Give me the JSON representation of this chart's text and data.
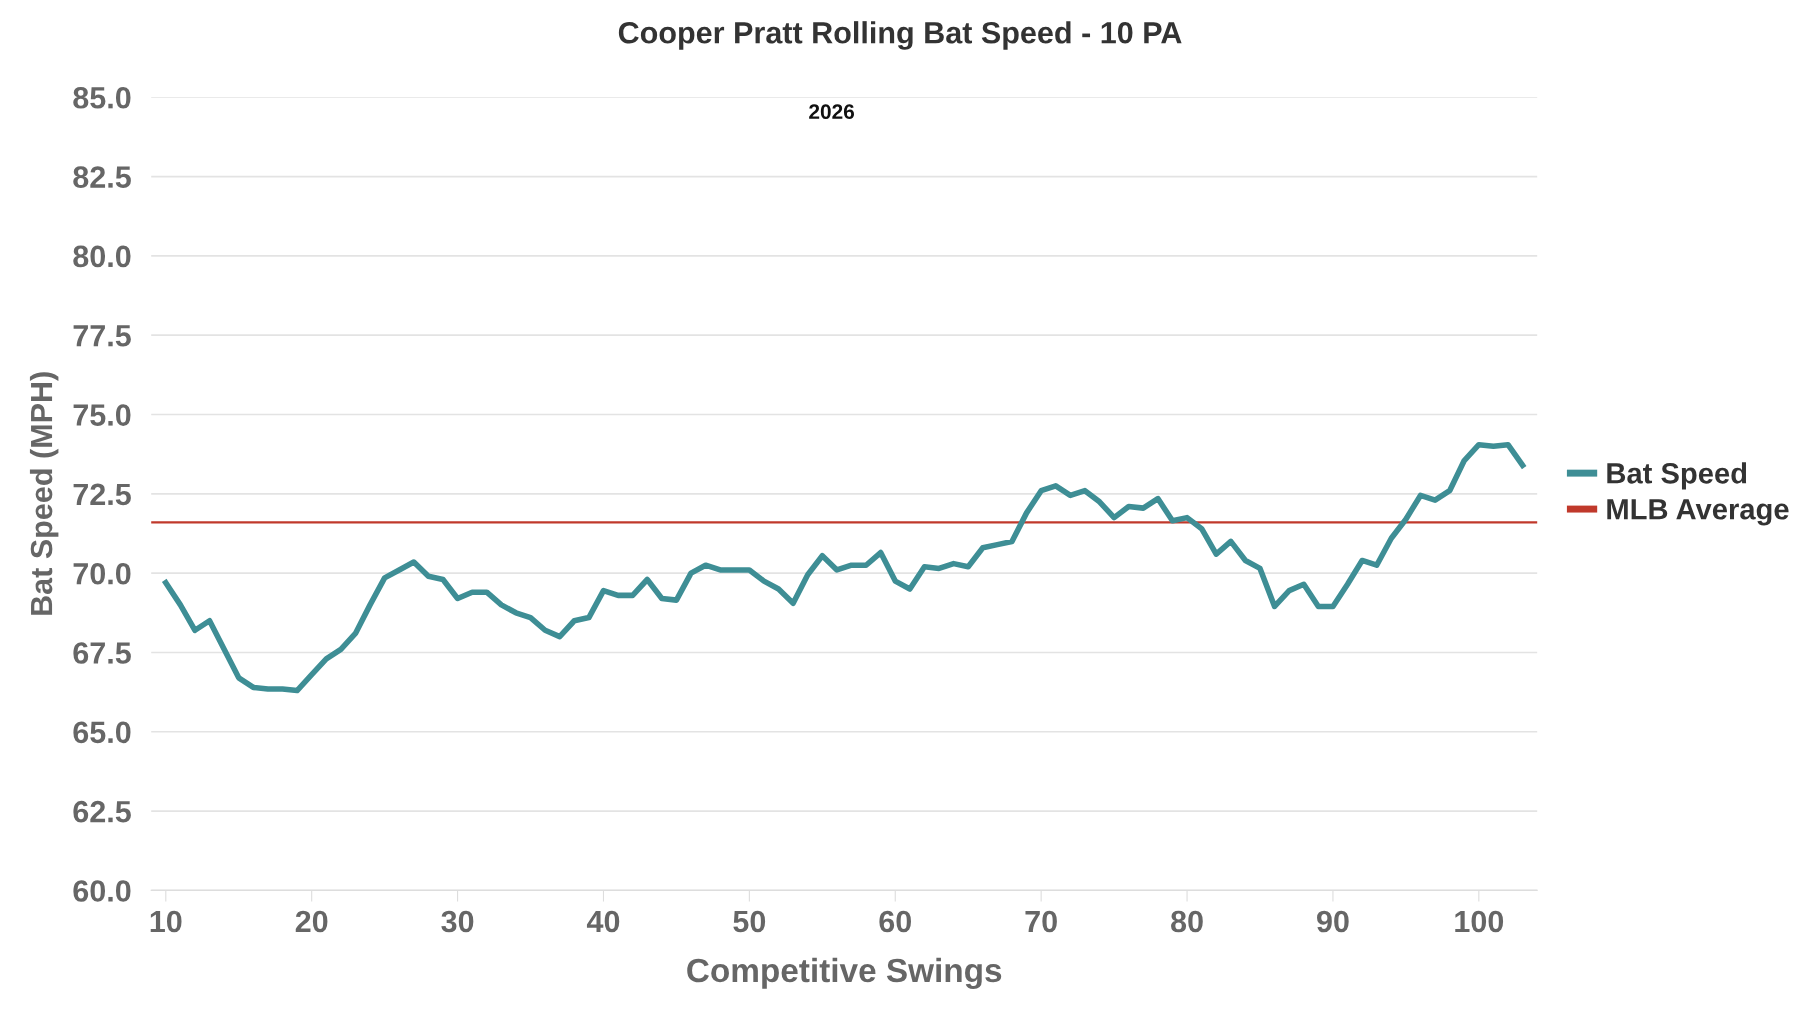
{
  "chart_data": {
    "type": "line",
    "title": "Cooper Pratt Rolling Bat Speed - 10 PA",
    "annotations": [
      "2026"
    ],
    "xlabel": "Competitive Swings",
    "ylabel": "Bat Speed (MPH)",
    "x": [
      10,
      11,
      12,
      13,
      14,
      15,
      16,
      17,
      18,
      19,
      20,
      21,
      22,
      23,
      24,
      25,
      26,
      27,
      28,
      29,
      30,
      31,
      32,
      33,
      34,
      35,
      36,
      37,
      38,
      39,
      40,
      41,
      42,
      43,
      44,
      45,
      46,
      47,
      48,
      49,
      50,
      51,
      52,
      53,
      54,
      55,
      56,
      57,
      58,
      59,
      60,
      61,
      62,
      63,
      64,
      65,
      66,
      67,
      68,
      69,
      70,
      71,
      72,
      73,
      74,
      75,
      76,
      77,
      78,
      79,
      80,
      81,
      82,
      83,
      84,
      85,
      86,
      87,
      88,
      89,
      90,
      91,
      92,
      93,
      94,
      95,
      96,
      97,
      98,
      99,
      100,
      101,
      102,
      103
    ],
    "series": [
      {
        "name": "Bat Speed",
        "color": "#3e8e95",
        "values": [
          69.7,
          69.0,
          68.2,
          68.5,
          67.6,
          66.7,
          66.4,
          66.35,
          66.35,
          66.3,
          66.8,
          67.3,
          67.6,
          68.1,
          69.0,
          69.85,
          70.1,
          70.35,
          69.9,
          69.8,
          69.2,
          69.4,
          69.4,
          69.0,
          68.75,
          68.6,
          68.2,
          68.0,
          68.5,
          68.6,
          69.45,
          69.3,
          69.3,
          69.8,
          69.2,
          69.15,
          70.0,
          70.25,
          70.1,
          70.1,
          70.1,
          69.75,
          69.5,
          69.05,
          69.95,
          70.55,
          70.1,
          70.25,
          70.25,
          70.65,
          69.75,
          69.5,
          70.2,
          70.15,
          70.3,
          70.2,
          70.8,
          70.9,
          71.0,
          71.9,
          72.6,
          72.75,
          72.45,
          72.6,
          72.25,
          71.75,
          72.1,
          72.05,
          72.35,
          71.65,
          71.75,
          71.4,
          70.6,
          71.0,
          70.4,
          70.15,
          68.95,
          69.45,
          69.65,
          68.95,
          68.95,
          69.65,
          70.4,
          70.25,
          71.1,
          71.7,
          72.45,
          72.3,
          72.6,
          73.55,
          74.05,
          74.0,
          74.05,
          73.4
        ]
      }
    ],
    "ref_lines": [
      {
        "axis": "y",
        "value": 71.6,
        "label": "MLB Average",
        "color": "#c0392b",
        "line_style": "solid"
      }
    ],
    "xlim": [
      9,
      104
    ],
    "xticks": [
      10,
      20,
      30,
      40,
      50,
      60,
      70,
      80,
      90,
      100
    ],
    "ylim": [
      60,
      85
    ],
    "yticks": [
      {
        "value": 60,
        "label": "60.0"
      },
      {
        "value": 62.5,
        "label": "62.5"
      },
      {
        "value": 65,
        "label": "65.0"
      },
      {
        "value": 67.5,
        "label": "67.5"
      },
      {
        "value": 70,
        "label": "70.0"
      },
      {
        "value": 72.5,
        "label": "72.5"
      },
      {
        "value": 75,
        "label": "75.0"
      },
      {
        "value": 77.5,
        "label": "77.5"
      },
      {
        "value": 80,
        "label": "80.0"
      },
      {
        "value": 82.5,
        "label": "82.5"
      },
      {
        "value": 85,
        "label": "85.0"
      }
    ],
    "grid": "y",
    "legend": "right",
    "marker": "none",
    "line_style": "solid"
  }
}
